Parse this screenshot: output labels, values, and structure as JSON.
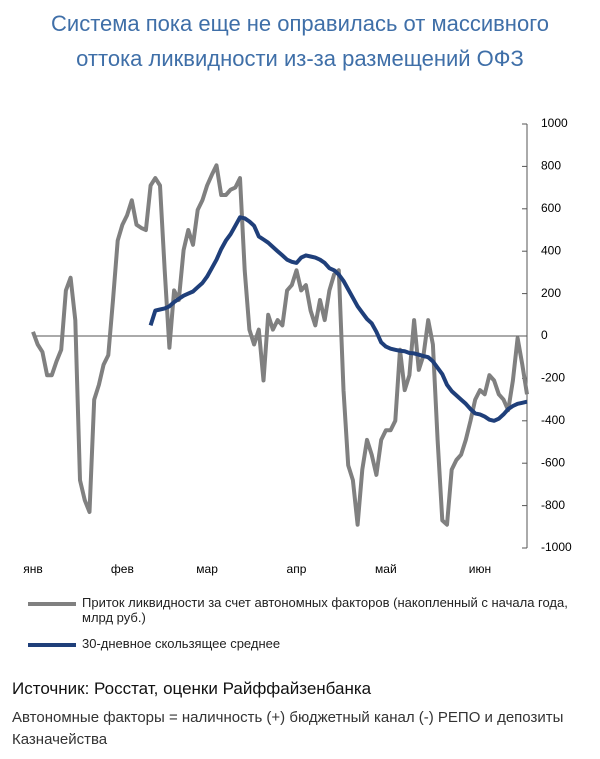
{
  "chart_data": {
    "type": "line",
    "title": "Система пока еще не оправилась от массивного оттока ликвидности из-за размещений ОФЗ",
    "categories": [
      "янв",
      null,
      null,
      null,
      null,
      null,
      null,
      null,
      null,
      null,
      null,
      null,
      null,
      null,
      null,
      null,
      null,
      null,
      null,
      "фев",
      null,
      null,
      null,
      null,
      null,
      null,
      null,
      null,
      null,
      null,
      null,
      null,
      null,
      null,
      null,
      null,
      null,
      "мар",
      null,
      null,
      null,
      null,
      null,
      null,
      null,
      null,
      null,
      null,
      null,
      null,
      null,
      null,
      null,
      null,
      null,
      null,
      "апр",
      null,
      null,
      null,
      null,
      null,
      null,
      null,
      null,
      null,
      null,
      null,
      null,
      null,
      null,
      null,
      null,
      null,
      null,
      "май",
      null,
      null,
      null,
      null,
      null,
      null,
      null,
      null,
      null,
      null,
      null,
      null,
      null,
      null,
      null,
      null,
      null,
      null,
      null,
      "июн",
      null,
      null,
      null,
      null,
      null,
      null,
      null,
      null,
      null,
      null
    ],
    "series": [
      {
        "name": "Приток ликвидности за счет автономных факторов (накопленный с начала года, млрд руб.)",
        "color": "#808080",
        "values": [
          20,
          -40,
          -75,
          -185,
          -185,
          -120,
          -65,
          215,
          275,
          75,
          -680,
          -775,
          -830,
          -300,
          -230,
          -135,
          -90,
          170,
          450,
          525,
          570,
          640,
          525,
          510,
          500,
          710,
          745,
          710,
          310,
          -55,
          215,
          170,
          405,
          500,
          430,
          595,
          640,
          710,
          760,
          805,
          665,
          665,
          690,
          700,
          745,
          310,
          30,
          -40,
          30,
          -210,
          100,
          30,
          75,
          50,
          215,
          240,
          310,
          215,
          240,
          120,
          50,
          170,
          75,
          215,
          290,
          310,
          -255,
          -610,
          -680,
          -890,
          -630,
          -490,
          -560,
          -655,
          -490,
          -445,
          -445,
          -400,
          -65,
          -255,
          -185,
          75,
          -160,
          -90,
          75,
          -40,
          -490,
          -870,
          -890,
          -630,
          -585,
          -560,
          -490,
          -400,
          -300,
          -255,
          -275,
          -185,
          -210,
          -275,
          -300,
          -350,
          -210,
          -10,
          -135,
          -275
        ]
      },
      {
        "name": "30-дневное скользящее среднее",
        "color": "#1f3f7a",
        "values": [
          null,
          null,
          null,
          null,
          null,
          null,
          null,
          null,
          null,
          null,
          null,
          null,
          null,
          null,
          null,
          null,
          null,
          null,
          null,
          null,
          null,
          null,
          null,
          null,
          null,
          50,
          120,
          125,
          130,
          140,
          160,
          175,
          190,
          200,
          210,
          230,
          250,
          280,
          320,
          360,
          410,
          450,
          480,
          520,
          560,
          555,
          540,
          520,
          470,
          455,
          440,
          420,
          400,
          380,
          360,
          350,
          345,
          370,
          380,
          375,
          370,
          360,
          345,
          320,
          310,
          290,
          260,
          220,
          180,
          140,
          110,
          80,
          60,
          20,
          -30,
          -50,
          -60,
          -65,
          -70,
          -72,
          -80,
          -82,
          -88,
          -95,
          -100,
          -120,
          -150,
          -180,
          -230,
          -260,
          -280,
          -300,
          -320,
          -345,
          -365,
          -370,
          -380,
          -395,
          -400,
          -390,
          -370,
          -345,
          -330,
          -320,
          -315,
          -310
        ]
      }
    ],
    "ylim": [
      -1000,
      1000
    ],
    "yticks": [
      1000,
      800,
      600,
      400,
      200,
      0,
      -200,
      -400,
      -600,
      -800,
      -1000
    ],
    "source": "Источник: Росстат, оценки Райффайзенбанка",
    "note": "Автономные факторы = наличность (+) бюджетный канал (-) РЕПО и депозиты Казначейства"
  }
}
